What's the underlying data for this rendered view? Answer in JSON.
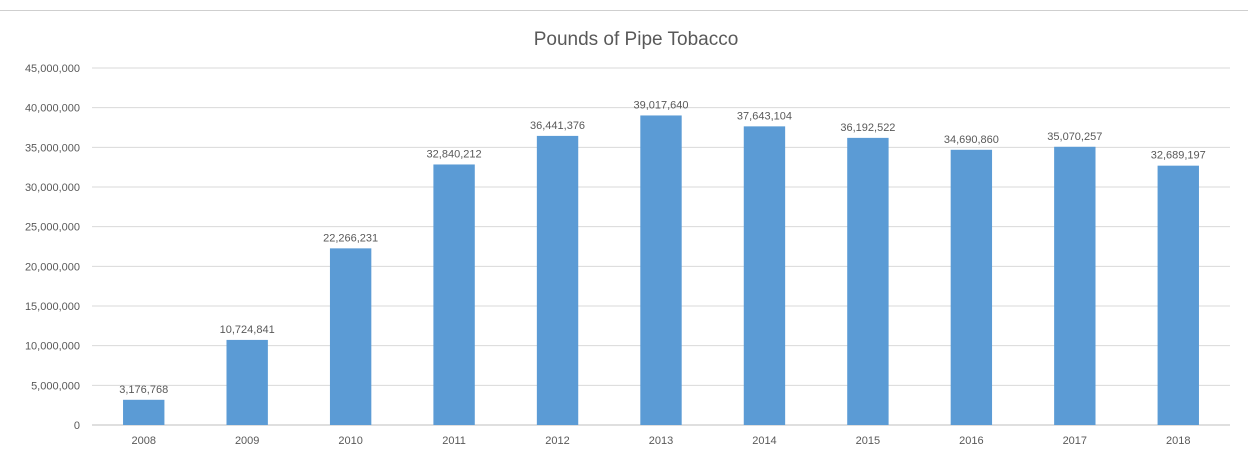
{
  "chart_data": {
    "type": "bar",
    "title": "Pounds of Pipe Tobacco",
    "xlabel": "",
    "ylabel": "",
    "categories": [
      "2008",
      "2009",
      "2010",
      "2011",
      "2012",
      "2013",
      "2014",
      "2015",
      "2016",
      "2017",
      "2018"
    ],
    "values": [
      3176768,
      10724841,
      22266231,
      32840212,
      36441376,
      39017640,
      37643104,
      36192522,
      34690860,
      35070257,
      32689197
    ],
    "data_labels": [
      "3,176,768",
      "10,724,841",
      "22,266,231",
      "32,840,212",
      "36,441,376",
      "39,017,640",
      "37,643,104",
      "36,192,522",
      "34,690,860",
      "35,070,257",
      "32,689,197"
    ],
    "yticks": [
      0,
      5000000,
      10000000,
      15000000,
      20000000,
      25000000,
      30000000,
      35000000,
      40000000,
      45000000
    ],
    "ytick_labels": [
      "0",
      "5,000,000",
      "10,000,000",
      "15,000,000",
      "20,000,000",
      "25,000,000",
      "30,000,000",
      "35,000,000",
      "40,000,000",
      "45,000,000"
    ],
    "ylim": [
      0,
      45000000
    ],
    "grid": true,
    "legend": "none",
    "bar_color": "#5b9bd5",
    "grid_color": "#d9d9d9",
    "text_color": "#595959"
  }
}
